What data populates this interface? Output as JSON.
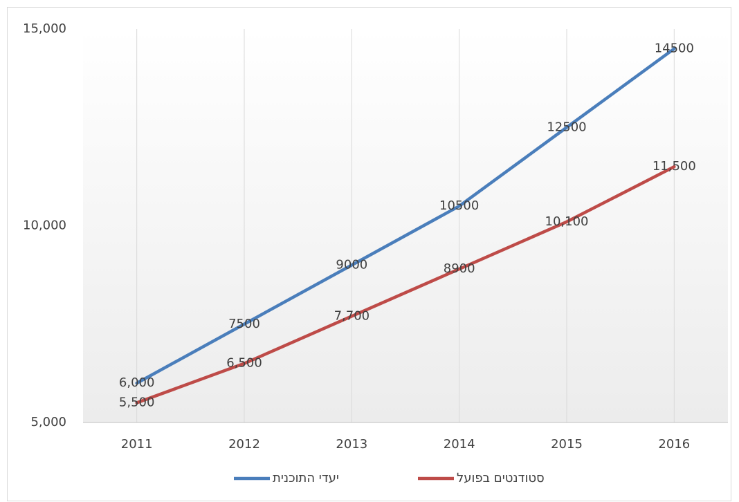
{
  "chart_data": {
    "type": "line",
    "categories": [
      "2011",
      "2012",
      "2013",
      "2014",
      "2015",
      "2016"
    ],
    "series": [
      {
        "name": "יעדי התוכנית",
        "color": "#4a7ebb",
        "values": [
          6000,
          7500,
          9000,
          10500,
          12500,
          14500
        ],
        "value_labels": [
          "6,000",
          "7500",
          "9000",
          "10500",
          "12500",
          "14500"
        ]
      },
      {
        "name": "סטודנטים בפועל",
        "color": "#be4b48",
        "values": [
          5500,
          6500,
          7700,
          8900,
          10100,
          11500
        ],
        "value_labels": [
          "5,500",
          "6,500",
          "7,700",
          "8900",
          "10,100",
          "11,500"
        ]
      }
    ],
    "ylim": [
      5000,
      15000
    ],
    "yticks": [
      {
        "value": 5000,
        "label": "5,000"
      },
      {
        "value": 10000,
        "label": "10,000"
      },
      {
        "value": 15000,
        "label": "15,000"
      }
    ],
    "grid": true,
    "legend": "bottom"
  }
}
